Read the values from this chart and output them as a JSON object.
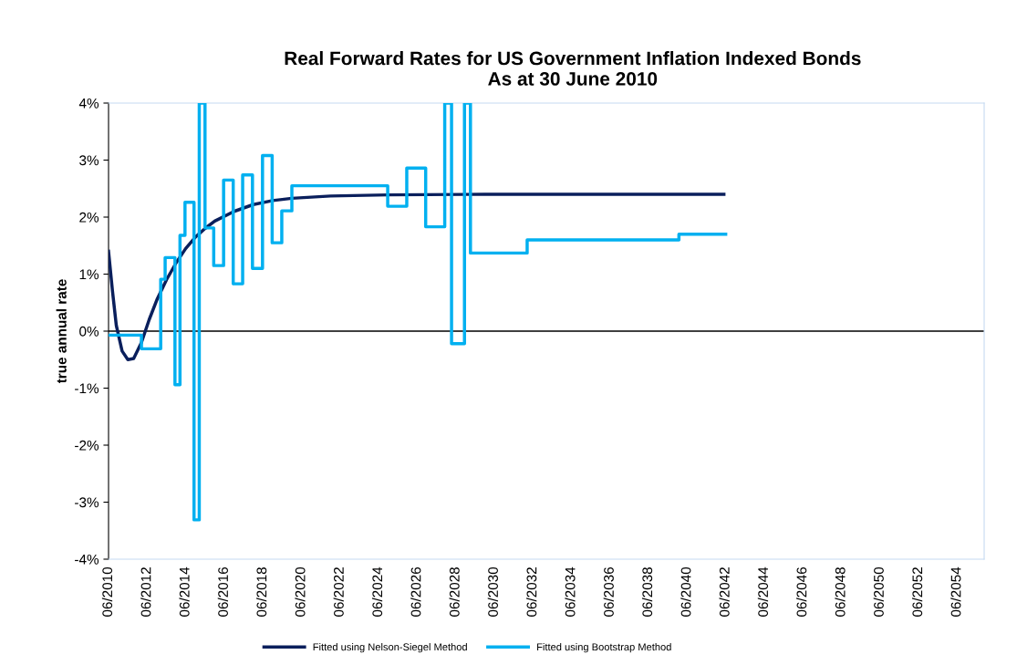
{
  "chart_data": {
    "type": "line",
    "title": "Real Forward Rates for US Government Inflation Indexed Bonds\nAs at 30 June 2010",
    "ylabel": "true annual rate",
    "xlim": [
      "2010-06-30",
      "2055-11-24"
    ],
    "xticks": [
      {
        "value": "2010-06-30",
        "label": "06/2010"
      },
      {
        "value": "2012-06-30",
        "label": "06/2012"
      },
      {
        "value": "2014-06-30",
        "label": "06/2014"
      },
      {
        "value": "2016-06-30",
        "label": "06/2016"
      },
      {
        "value": "2018-06-30",
        "label": "06/2018"
      },
      {
        "value": "2020-06-30",
        "label": "06/2020"
      },
      {
        "value": "2022-06-30",
        "label": "06/2022"
      },
      {
        "value": "2024-06-30",
        "label": "06/2024"
      },
      {
        "value": "2026-06-30",
        "label": "06/2026"
      },
      {
        "value": "2028-06-30",
        "label": "06/2028"
      },
      {
        "value": "2030-06-30",
        "label": "06/2030"
      },
      {
        "value": "2032-06-30",
        "label": "06/2032"
      },
      {
        "value": "2034-06-30",
        "label": "06/2034"
      },
      {
        "value": "2036-06-30",
        "label": "06/2036"
      },
      {
        "value": "2038-06-30",
        "label": "06/2038"
      },
      {
        "value": "2040-06-30",
        "label": "06/2040"
      },
      {
        "value": "2042-06-30",
        "label": "06/2042"
      },
      {
        "value": "2044-06-30",
        "label": "06/2044"
      },
      {
        "value": "2046-06-30",
        "label": "06/2046"
      },
      {
        "value": "2048-06-30",
        "label": "06/2048"
      },
      {
        "value": "2050-06-30",
        "label": "06/2050"
      },
      {
        "value": "2052-06-30",
        "label": "06/2052"
      },
      {
        "value": "2054-06-30",
        "label": "06/2054"
      }
    ],
    "ylim": [
      -4,
      4
    ],
    "yticks": [
      {
        "value": -4,
        "label": "-4%"
      },
      {
        "value": -3,
        "label": "-3%"
      },
      {
        "value": -2,
        "label": "-2%"
      },
      {
        "value": -1,
        "label": "-1%"
      },
      {
        "value": 0,
        "label": "0%"
      },
      {
        "value": 1,
        "label": "1%"
      },
      {
        "value": 2,
        "label": "2%"
      },
      {
        "value": 3,
        "label": "3%"
      },
      {
        "value": 4,
        "label": "4%"
      }
    ],
    "grid": false,
    "legend": "bottom",
    "marker": "none",
    "line_style": "solid",
    "ref_lines": [
      {
        "axis": "y",
        "value": 0,
        "color": "#000000"
      }
    ],
    "series": [
      {
        "name": "Fitted using Nelson-Siegel Method",
        "color": "#0a1f5c",
        "x": [
          "2010-06-30",
          "2010-09-13",
          "2010-11-24",
          "2011-03-14",
          "2011-07-01",
          "2011-10-19",
          "2012-03-14",
          "2012-08-07",
          "2013-01-01",
          "2013-07-01",
          "2014-01-01",
          "2014-07-01",
          "2015-01-01",
          "2015-07-01",
          "2016-01-01",
          "2017-01-01",
          "2018-01-01",
          "2019-01-01",
          "2020-01-01",
          "2022-01-01",
          "2025-01-01",
          "2030-01-01",
          "2042-05-27"
        ],
        "values": [
          1.4,
          0.7,
          0.1,
          -0.35,
          -0.5,
          -0.48,
          -0.2,
          0.2,
          0.55,
          0.9,
          1.2,
          1.45,
          1.65,
          1.8,
          1.93,
          2.1,
          2.22,
          2.29,
          2.33,
          2.37,
          2.39,
          2.4,
          2.4
        ]
      },
      {
        "name": "Fitted using Bootstrap Method",
        "type": "step",
        "color": "#00b0f0",
        "x": [
          "2010-06-30",
          "2012-03-14",
          "2013-03-14",
          "2013-06-06",
          "2013-12-09",
          "2014-03-14",
          "2014-06-17",
          "2014-12-05",
          "2015-03-14",
          "2015-07-01",
          "2015-12-13",
          "2016-06-17",
          "2016-12-16",
          "2017-06-13",
          "2017-12-16",
          "2018-06-24",
          "2018-12-24",
          "2019-06-24",
          "2020-01-01",
          "2024-12-20",
          "2025-12-16",
          "2026-12-09",
          "2027-12-05",
          "2028-04-12",
          "2028-12-13",
          "2029-04-05",
          "2032-03-14",
          "2040-01-26",
          "2042-06-30"
        ],
        "values": [
          -0.07,
          -0.31,
          0.91,
          1.29,
          -0.94,
          1.68,
          2.26,
          -3.31,
          4.0,
          1.81,
          1.15,
          2.65,
          0.83,
          2.74,
          1.1,
          3.08,
          1.55,
          2.11,
          2.55,
          2.19,
          2.86,
          1.83,
          4.0,
          -0.22,
          4.0,
          1.37,
          1.6,
          1.7,
          1.7
        ]
      }
    ]
  }
}
